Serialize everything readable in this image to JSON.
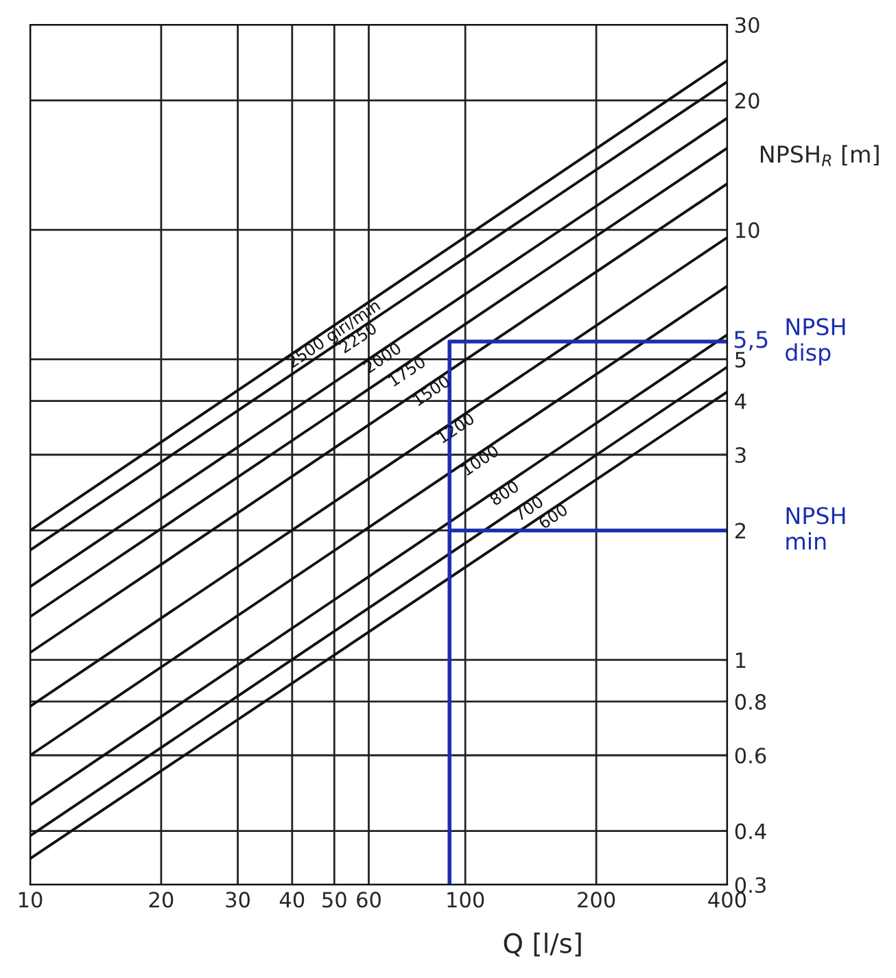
{
  "chart_data": {
    "type": "line",
    "xlabel": "Q [l/s]",
    "ylabel": "NPSH$_{R}$ [m]",
    "log": "xy",
    "grid": true,
    "legend": false,
    "xlim": [
      10,
      400
    ],
    "ylim": [
      0.3,
      30
    ],
    "xticks": [
      10,
      20,
      30,
      40,
      50,
      60,
      100,
      200,
      400
    ],
    "yticks": [
      0.3,
      0.4,
      0.6,
      0.8,
      1,
      2,
      3,
      4,
      5,
      10,
      20,
      30
    ],
    "series": [
      {
        "name": "2500 giri/min",
        "color": "#111111",
        "x": [
          10,
          400
        ],
        "values": [
          2.0,
          24.8
        ]
      },
      {
        "name": "2250",
        "color": "#111111",
        "x": [
          10,
          400
        ],
        "values": [
          1.8,
          22.1
        ]
      },
      {
        "name": "2000",
        "color": "#111111",
        "x": [
          10,
          400
        ],
        "values": [
          1.48,
          18.2
        ]
      },
      {
        "name": "1750",
        "color": "#111111",
        "x": [
          10,
          400
        ],
        "values": [
          1.26,
          15.5
        ]
      },
      {
        "name": "1500",
        "color": "#111111",
        "x": [
          10,
          400
        ],
        "values": [
          1.04,
          12.8
        ]
      },
      {
        "name": "1200",
        "color": "#111111",
        "x": [
          10,
          400
        ],
        "values": [
          0.78,
          9.6
        ]
      },
      {
        "name": "1000",
        "color": "#111111",
        "x": [
          10,
          400
        ],
        "values": [
          0.6,
          7.4
        ]
      },
      {
        "name": "800",
        "color": "#111111",
        "x": [
          10,
          400
        ],
        "values": [
          0.46,
          5.7
        ]
      },
      {
        "name": "700",
        "color": "#111111",
        "x": [
          10,
          400
        ],
        "values": [
          0.39,
          4.8
        ]
      },
      {
        "name": "600",
        "color": "#111111",
        "x": [
          10,
          400
        ],
        "values": [
          0.345,
          4.2
        ]
      },
      {
        "name": "NPSH disp",
        "color": "#1a2fb0",
        "x": [
          92,
          92,
          400
        ],
        "values": [
          0.3,
          5.5,
          5.5
        ]
      },
      {
        "name": "NPSH min",
        "color": "#1a2fb0",
        "x": [
          92,
          400
        ],
        "values": [
          2,
          2
        ]
      }
    ],
    "annotations": [
      {
        "text": "5,5",
        "x": 400,
        "y": 5.5
      }
    ]
  }
}
